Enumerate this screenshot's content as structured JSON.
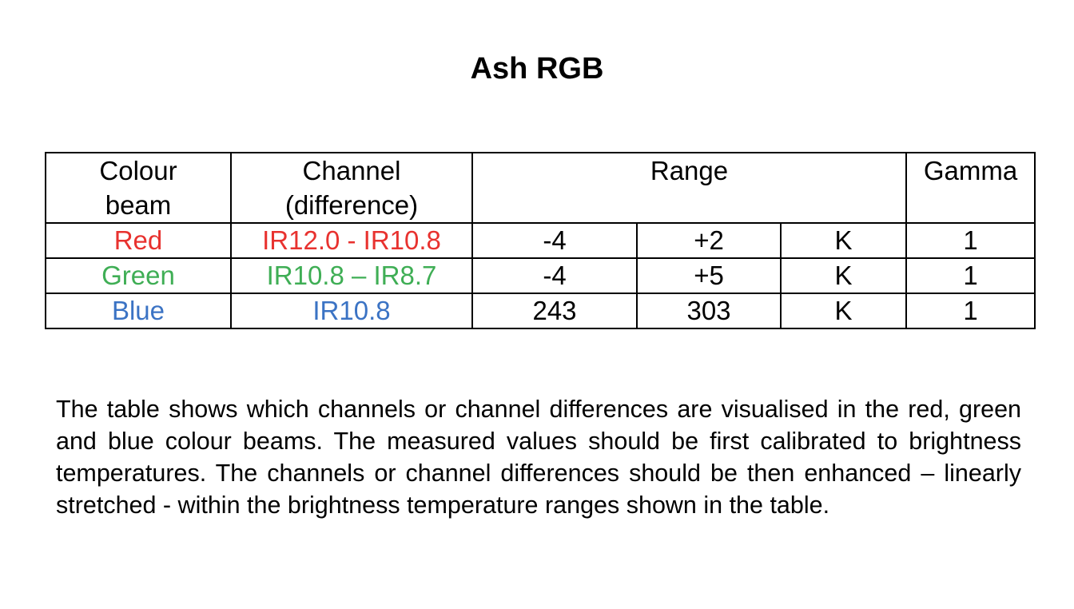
{
  "title": "Ash RGB",
  "table": {
    "headers": {
      "colour_beam": [
        "Colour",
        "beam"
      ],
      "channel": [
        "Channel",
        "(difference)"
      ],
      "range": "Range",
      "gamma": "Gamma"
    },
    "rows": [
      {
        "beam": "Red",
        "channel": "IR12.0 - IR10.8",
        "min": "-4",
        "max": "+2",
        "unit": "K",
        "gamma": "1",
        "color": "#e8322f"
      },
      {
        "beam": "Green",
        "channel": "IR10.8 – IR8.7",
        "min": "-4",
        "max": "+5",
        "unit": "K",
        "gamma": "1",
        "color": "#3fae55"
      },
      {
        "beam": "Blue",
        "channel": "IR10.8",
        "min": "243",
        "max": "303",
        "unit": "K",
        "gamma": "1",
        "color": "#3b73c4"
      }
    ]
  },
  "paragraph": "The table shows which channels or channel differences are visualised in the red, green and blue colour beams. The measured values should be first calibrated to brightness temperatures. The channels or channel differences should be then enhanced – linearly stretched - within the brightness temperature ranges shown in the table."
}
